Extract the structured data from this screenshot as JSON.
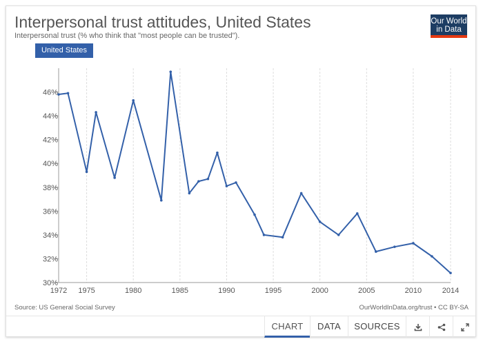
{
  "header": {
    "title": "Interpersonal trust attitudes, United States",
    "subtitle": "Interpersonal trust (% who think that \"most people can be trusted\").",
    "logo_line1": "Our World",
    "logo_line2": "in Data"
  },
  "legend": {
    "entity": "United States"
  },
  "chart_data": {
    "type": "line",
    "title": "Interpersonal trust attitudes, United States",
    "subtitle": "Interpersonal trust (% who think that \"most people can be trusted\").",
    "xlabel": "",
    "ylabel": "",
    "xlim": [
      1972,
      2014
    ],
    "ylim": [
      30,
      48
    ],
    "x_ticks": [
      1972,
      1975,
      1980,
      1985,
      1990,
      1995,
      2000,
      2005,
      2010,
      2014
    ],
    "y_ticks": [
      30,
      32,
      34,
      36,
      38,
      40,
      42,
      44,
      46
    ],
    "y_tick_labels": [
      "30%",
      "32%",
      "34%",
      "36%",
      "38%",
      "40%",
      "42%",
      "44%",
      "46%"
    ],
    "grid": "vertical",
    "series": [
      {
        "name": "United States",
        "color": "#3360a9",
        "x": [
          1972,
          1973,
          1975,
          1976,
          1978,
          1980,
          1983,
          1984,
          1986,
          1987,
          1988,
          1989,
          1990,
          1991,
          1993,
          1994,
          1996,
          1998,
          2000,
          2002,
          2004,
          2006,
          2008,
          2010,
          2012,
          2014
        ],
        "values": [
          45.8,
          45.9,
          39.3,
          44.3,
          38.8,
          45.3,
          36.9,
          47.7,
          37.5,
          38.5,
          38.7,
          40.9,
          38.1,
          38.4,
          35.7,
          34.0,
          33.8,
          37.5,
          35.1,
          34.0,
          35.8,
          32.6,
          33.0,
          33.3,
          32.2,
          30.8
        ]
      }
    ]
  },
  "footer": {
    "source": "Source: US General Social Survey",
    "credit": "OurWorldInData.org/trust • CC BY-SA",
    "tabs": [
      "CHART",
      "DATA",
      "SOURCES"
    ],
    "active_tab": "CHART"
  },
  "colors": {
    "accent": "#3360a9",
    "logo_bg": "#1d3d63",
    "logo_bar": "#e63912"
  }
}
